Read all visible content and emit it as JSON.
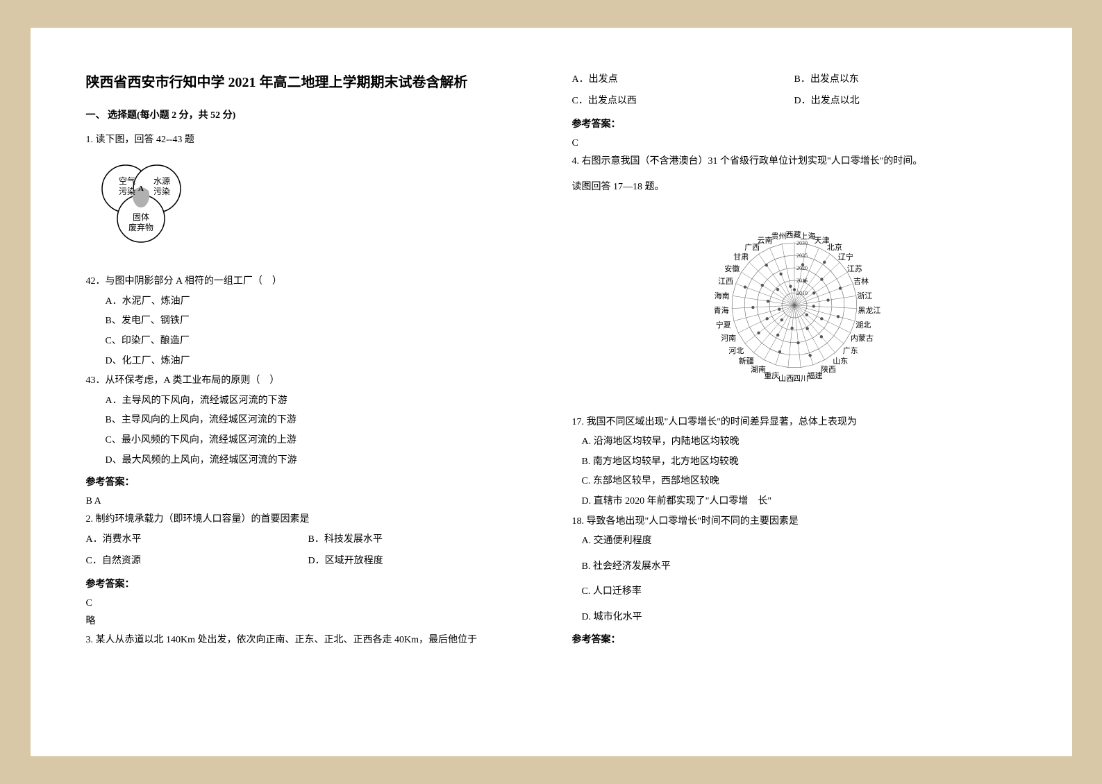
{
  "colors": {
    "page_bg": "#ffffff",
    "outer_bg": "#d8c8a8",
    "text": "#000000",
    "venn_stroke": "#000000",
    "venn_fill": "#ffffff",
    "venn_shade": "#b0b0b0",
    "radar_stroke": "#666666",
    "radar_fill": "#eeeeee",
    "radar_point": "#555555"
  },
  "typography": {
    "title_fontsize": 20,
    "body_fontsize": 14,
    "radar_label_fontsize": 11,
    "font_family": "SimSun"
  },
  "title": "陕西省西安市行知中学 2021 年高二地理上学期期末试卷含解析",
  "section1_header": "一、 选择题(每小题 2 分，共 52 分)",
  "q1": {
    "stem": "1. 读下图，回答 42--43 题",
    "venn_labels": {
      "left": "空气污染",
      "right": "水源污染",
      "bottom": "固体废弃物",
      "center": "A"
    },
    "q42": {
      "stem": "42．与图中阴影部分 A 相符的一组工厂（　）",
      "options": {
        "A": "A．水泥厂、炼油厂",
        "B": "B、发电厂、钢铁厂",
        "C": "C、印染厂、酿造厂",
        "D": "D、化工厂、炼油厂"
      }
    },
    "q43": {
      "stem": "43．从环保考虑，A 类工业布局的原则（　）",
      "options": {
        "A": "A．主导风的下风向，流经城区河流的下游",
        "B": "B、主导风向的上风向，流经城区河流的下游",
        "C": "C、最小风频的下风向，流经城区河流的上游",
        "D": "D、最大风频的上风向，流经城区河流的下游"
      }
    },
    "answer_label": "参考答案：",
    "answer": "B  A"
  },
  "q2": {
    "stem": "2. 制约环境承载力（即环境人口容量）的首要因素是",
    "options": {
      "A": "A．消费水平",
      "B": "B．科技发展水平",
      "C": "C．自然资源",
      "D": "D．区域开放程度"
    },
    "answer_label": "参考答案：",
    "answer": "C",
    "note": "略"
  },
  "q3": {
    "stem": "3. 某人从赤道以北 140Km 处出发，依次向正南、正东、正北、正西各走 40Km，最后他位于",
    "options": {
      "A": "A．出发点",
      "B": "B．出发点以东",
      "C": "C．出发点以西",
      "D": "D．出发点以北"
    },
    "answer_label": "参考答案：",
    "answer": "C"
  },
  "q4": {
    "stem": "4. 右图示意我国（不含港澳台）31 个省级行政单位计划实现\"人口零增长\"的时间。",
    "sub": "读图回答 17—18 题。",
    "radar": {
      "type": "radar",
      "center_years": [
        "2010",
        "2015",
        "2020",
        "2025",
        "2030"
      ],
      "provinces": [
        "西藏",
        "上海",
        "天津",
        "北京",
        "辽宁",
        "江苏",
        "吉林",
        "浙江",
        "黑龙江",
        "湖北",
        "内蒙古",
        "广东",
        "山东",
        "陕西",
        "福建",
        "四川",
        "山西",
        "重庆",
        "湖南",
        "新疆",
        "河北",
        "河南",
        "宁夏",
        "青海",
        "海南",
        "江西",
        "安徽",
        "甘肃",
        "广西",
        "云南",
        "贵州"
      ],
      "ring_count": 5,
      "stroke_color": "#666666",
      "point_color": "#555555",
      "label_fontsize": 11
    },
    "q17": {
      "stem": "17. 我国不同区域出现\"人口零增长\"的时间差异显著，总体上表现为",
      "options": {
        "A": "A. 沿海地区均较早，内陆地区均较晚",
        "B": "B. 南方地区均较早，北方地区均较晚",
        "C": "C. 东部地区较早，西部地区较晚",
        "D": "D. 直辖市 2020 年前都实现了\"人口零增　长\""
      }
    },
    "q18": {
      "stem": "18. 导致各地出现\"人口零增长\"时间不同的主要因素是",
      "options": {
        "A": "A. 交通便利程度",
        "B": "B. 社会经济发展水平",
        "C": "C. 人口迁移率",
        "D": "D. 城市化水平"
      }
    },
    "answer_label": "参考答案："
  }
}
